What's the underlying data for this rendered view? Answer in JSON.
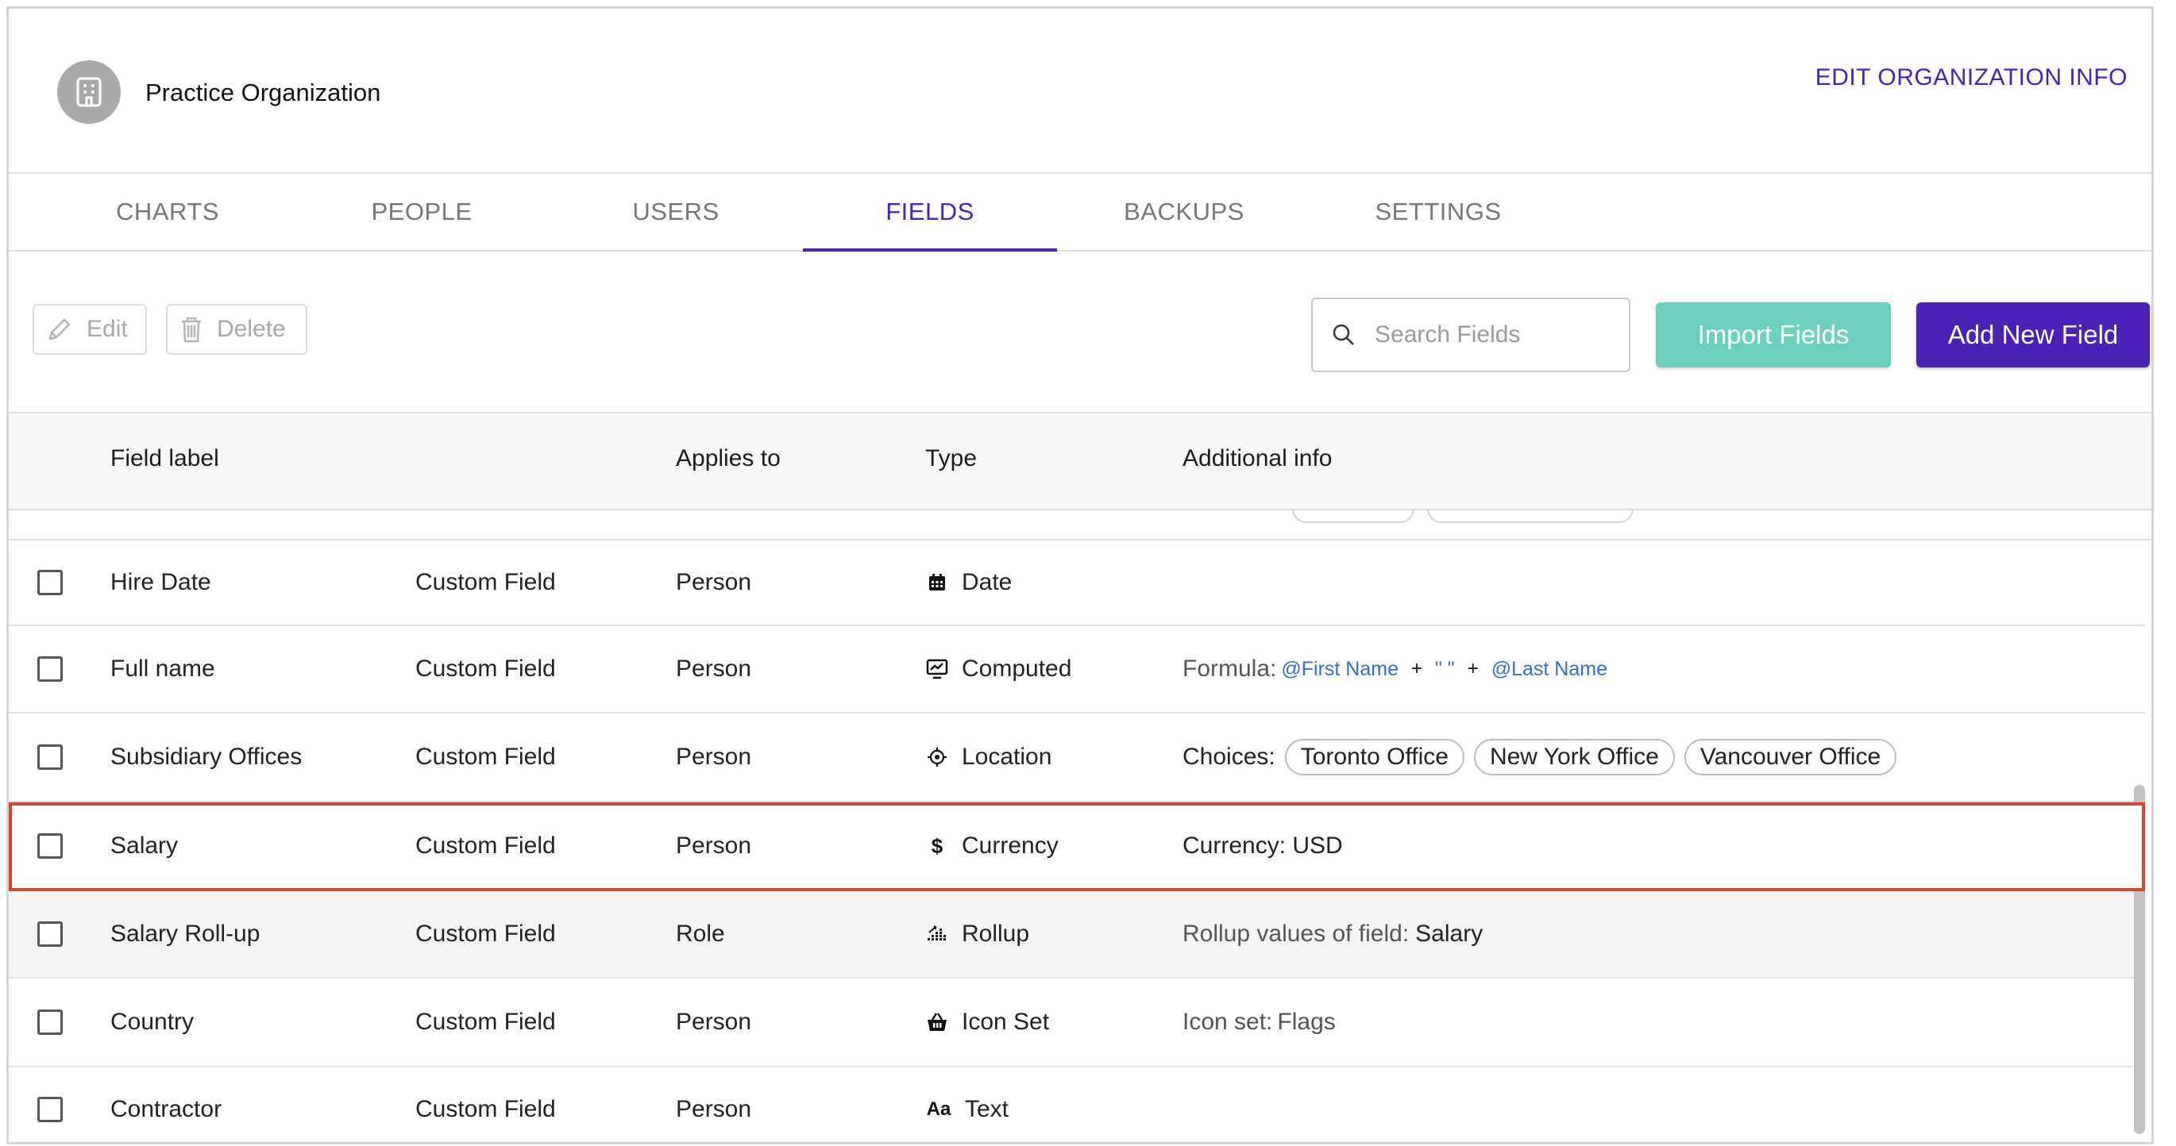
{
  "org": {
    "name": "Practice Organization",
    "edit_label": "EDIT ORGANIZATION INFO"
  },
  "tabs": [
    {
      "label": "CHARTS",
      "active": false
    },
    {
      "label": "PEOPLE",
      "active": false
    },
    {
      "label": "USERS",
      "active": false
    },
    {
      "label": "FIELDS",
      "active": true
    },
    {
      "label": "BACKUPS",
      "active": false
    },
    {
      "label": "SETTINGS",
      "active": false
    }
  ],
  "toolbar": {
    "edit_label": "Edit",
    "delete_label": "Delete",
    "search_placeholder": "Search Fields",
    "search_value": "",
    "import_label": "Import Fields",
    "add_label": "Add New Field"
  },
  "table": {
    "headers": {
      "field_label": "Field label",
      "applies_to": "Applies to",
      "type": "Type",
      "additional_info": "Additional info"
    },
    "rows": [
      {
        "label": "Hire Date",
        "category": "Custom Field",
        "applies_to": "Person",
        "type": "Date",
        "type_icon": "calendar-icon"
      },
      {
        "label": "Full name",
        "category": "Custom Field",
        "applies_to": "Person",
        "type": "Computed",
        "type_icon": "computed-icon",
        "info_prefix": "Formula:",
        "formula": [
          "@First Name",
          "+",
          "\" \"",
          "+",
          "@Last Name"
        ]
      },
      {
        "label": "Subsidiary Offices",
        "category": "Custom Field",
        "applies_to": "Person",
        "type": "Location",
        "type_icon": "location-icon",
        "info_prefix": "Choices:",
        "choices": [
          "Toronto Office",
          "New York Office",
          "Vancouver Office"
        ]
      },
      {
        "label": "Salary",
        "category": "Custom Field",
        "applies_to": "Person",
        "type": "Currency",
        "type_icon": "dollar-icon",
        "info_text": "Currency: USD",
        "highlighted": true
      },
      {
        "label": "Salary Roll-up",
        "category": "Custom Field",
        "applies_to": "Role",
        "type": "Rollup",
        "type_icon": "rollup-icon",
        "info_prefix": "Rollup values of field:",
        "info_value": "Salary"
      },
      {
        "label": "Country",
        "category": "Custom Field",
        "applies_to": "Person",
        "type": "Icon Set",
        "type_icon": "basket-icon",
        "info_prefix": "Icon set:",
        "info_value": "Flags"
      },
      {
        "label": "Contractor",
        "category": "Custom Field",
        "applies_to": "Person",
        "type": "Text",
        "type_icon": "text-icon",
        "type_glyph": "Aa"
      }
    ]
  },
  "colors": {
    "accent": "#4a22b8",
    "import_button": "#6dcfbe",
    "highlight": "#e0432b",
    "link_blue": "#2f6fd0"
  }
}
